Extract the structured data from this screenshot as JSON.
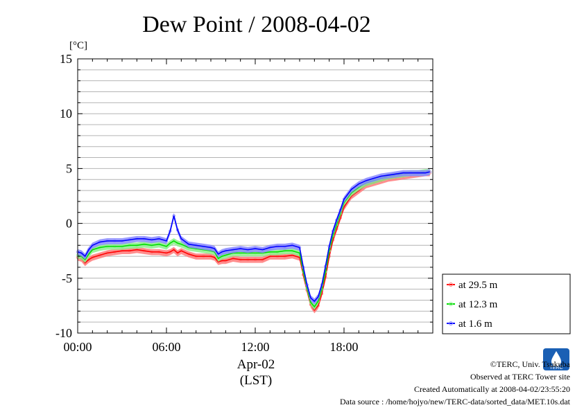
{
  "chart_data": {
    "type": "line",
    "title": "Dew Point / 2008-04-02",
    "ylabel": "[°C]",
    "xlabel_lines": [
      "Apr-02",
      "(LST)"
    ],
    "ylim": [
      -10,
      15
    ],
    "xlim": [
      0,
      23.83
    ],
    "y_ticks": [
      15,
      10,
      5,
      0,
      -5,
      -10
    ],
    "x_ticks": [
      {
        "value": 0,
        "label": "00:00"
      },
      {
        "value": 6,
        "label": "06:00"
      },
      {
        "value": 12,
        "label": "12:00"
      },
      {
        "value": 18,
        "label": "18:00"
      }
    ],
    "grid": true,
    "legend_position": "lower-right, outside plot",
    "x": [
      0,
      0.25,
      0.5,
      0.75,
      1,
      1.5,
      2,
      2.5,
      3,
      3.5,
      4,
      4.5,
      5,
      5.5,
      6,
      6.25,
      6.5,
      6.75,
      7,
      7.5,
      8,
      8.5,
      9,
      9.25,
      9.5,
      9.75,
      10,
      10.5,
      11,
      11.5,
      12,
      12.5,
      13,
      13.5,
      14,
      14.5,
      15,
      15.25,
      15.5,
      15.75,
      16,
      16.25,
      16.5,
      16.75,
      17,
      17.25,
      17.5,
      17.75,
      18,
      18.5,
      19,
      19.5,
      20,
      20.5,
      21,
      21.5,
      22,
      22.5,
      23,
      23.5,
      23.8
    ],
    "series": [
      {
        "name": "at 29.5 m",
        "color": "#ff0000",
        "values": [
          -3.1,
          -3.2,
          -3.6,
          -3.3,
          -3.1,
          -2.9,
          -2.7,
          -2.6,
          -2.5,
          -2.5,
          -2.4,
          -2.5,
          -2.6,
          -2.6,
          -2.7,
          -2.6,
          -2.4,
          -2.7,
          -2.5,
          -2.8,
          -3.0,
          -3.0,
          -3.0,
          -3.1,
          -3.5,
          -3.4,
          -3.4,
          -3.2,
          -3.3,
          -3.3,
          -3.3,
          -3.3,
          -3.0,
          -3.0,
          -3.0,
          -2.9,
          -3.1,
          -4.7,
          -6.1,
          -7.4,
          -7.9,
          -7.5,
          -6.4,
          -4.9,
          -3.0,
          -1.5,
          -0.5,
          0.5,
          1.5,
          2.5,
          3.0,
          3.5,
          3.7,
          3.9,
          4.1,
          4.2,
          4.3,
          4.4,
          4.5,
          4.6,
          4.6
        ]
      },
      {
        "name": "at 12.3 m",
        "color": "#00dd00",
        "values": [
          -2.9,
          -3.0,
          -3.3,
          -2.8,
          -2.4,
          -2.2,
          -2.1,
          -2.1,
          -2.1,
          -2.0,
          -2.0,
          -1.9,
          -2.0,
          -1.9,
          -2.1,
          -1.8,
          -1.6,
          -1.8,
          -1.9,
          -2.2,
          -2.3,
          -2.4,
          -2.5,
          -2.6,
          -3.2,
          -3.0,
          -2.9,
          -2.7,
          -2.7,
          -2.7,
          -2.7,
          -2.7,
          -2.6,
          -2.6,
          -2.5,
          -2.5,
          -2.7,
          -4.4,
          -5.9,
          -7.2,
          -7.6,
          -7.1,
          -6.0,
          -4.4,
          -2.5,
          -1.1,
          -0.1,
          0.9,
          1.9,
          2.8,
          3.3,
          3.7,
          3.9,
          4.1,
          4.3,
          4.4,
          4.5,
          4.6,
          4.6,
          4.7,
          4.7
        ]
      },
      {
        "name": "at 1.6 m",
        "color": "#0000ff",
        "values": [
          -2.6,
          -2.7,
          -3.0,
          -2.4,
          -2.0,
          -1.7,
          -1.6,
          -1.6,
          -1.6,
          -1.5,
          -1.4,
          -1.4,
          -1.5,
          -1.4,
          -1.6,
          -0.7,
          0.7,
          -0.6,
          -1.4,
          -1.9,
          -2.0,
          -2.1,
          -2.2,
          -2.3,
          -2.8,
          -2.6,
          -2.5,
          -2.4,
          -2.3,
          -2.4,
          -2.3,
          -2.4,
          -2.2,
          -2.1,
          -2.1,
          -2.0,
          -2.2,
          -4.0,
          -5.6,
          -6.8,
          -7.1,
          -6.7,
          -5.6,
          -3.9,
          -2.1,
          -0.7,
          0.3,
          1.2,
          2.2,
          3.1,
          3.6,
          3.9,
          4.1,
          4.3,
          4.4,
          4.5,
          4.6,
          4.6,
          4.6,
          4.6,
          4.7
        ]
      }
    ]
  },
  "credits": {
    "copyright": "©TERC, Univ. Tsukuba",
    "observed": "Observed at TERC Tower site",
    "created": "Created Automatically at 2008-04-02/23:55:20",
    "source": "Data source : /home/hojyo/new/TERC-data/sorted_data/MET.10s.dat"
  },
  "logo": {
    "text": "TERC",
    "color": "#1a5fb4"
  }
}
